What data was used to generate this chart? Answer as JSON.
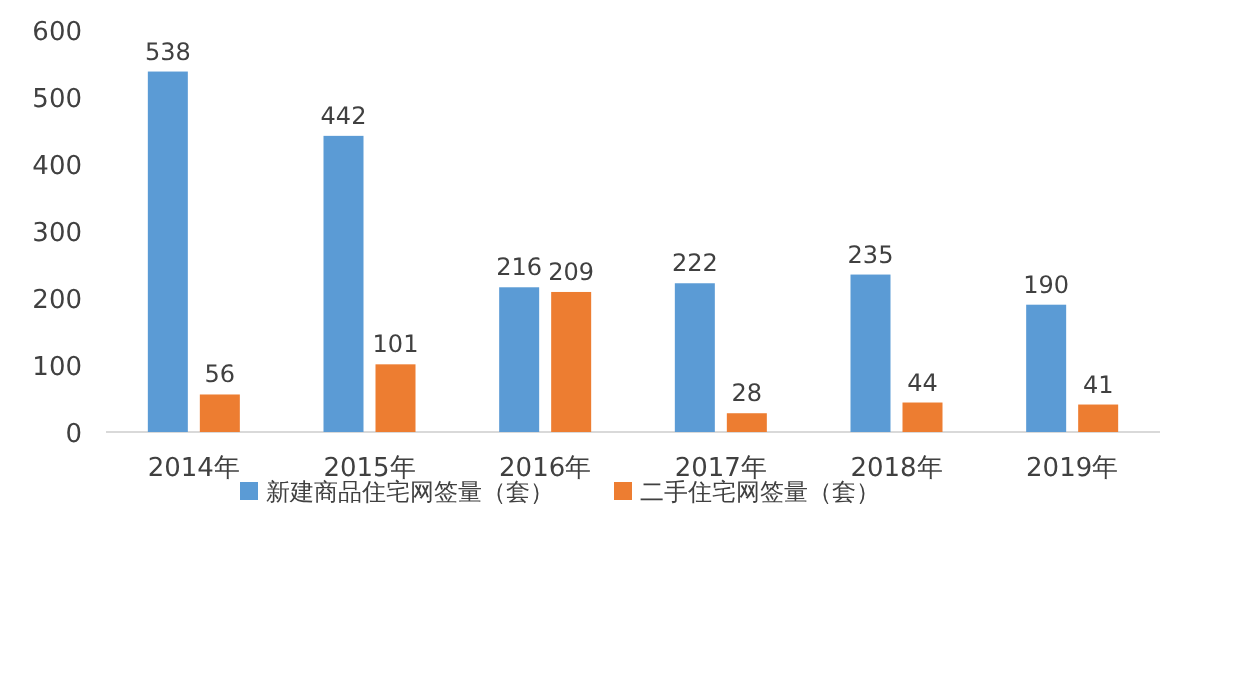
{
  "chart_data": {
    "type": "bar",
    "categories": [
      "2014年",
      "2015年",
      "2016年",
      "2017年",
      "2018年",
      "2019年"
    ],
    "series": [
      {
        "name": "新建商品住宅网签量（套）",
        "color": "#5b9bd5",
        "values": [
          538,
          442,
          216,
          222,
          235,
          190
        ]
      },
      {
        "name": "二手住宅网签量（套）",
        "color": "#ed7d31",
        "values": [
          56,
          101,
          209,
          28,
          44,
          41
        ]
      }
    ],
    "ylim": [
      0,
      600
    ],
    "yticks": [
      0,
      100,
      200,
      300,
      400,
      500,
      600
    ],
    "data_labels": true,
    "legend": "bottom",
    "grid": false
  }
}
